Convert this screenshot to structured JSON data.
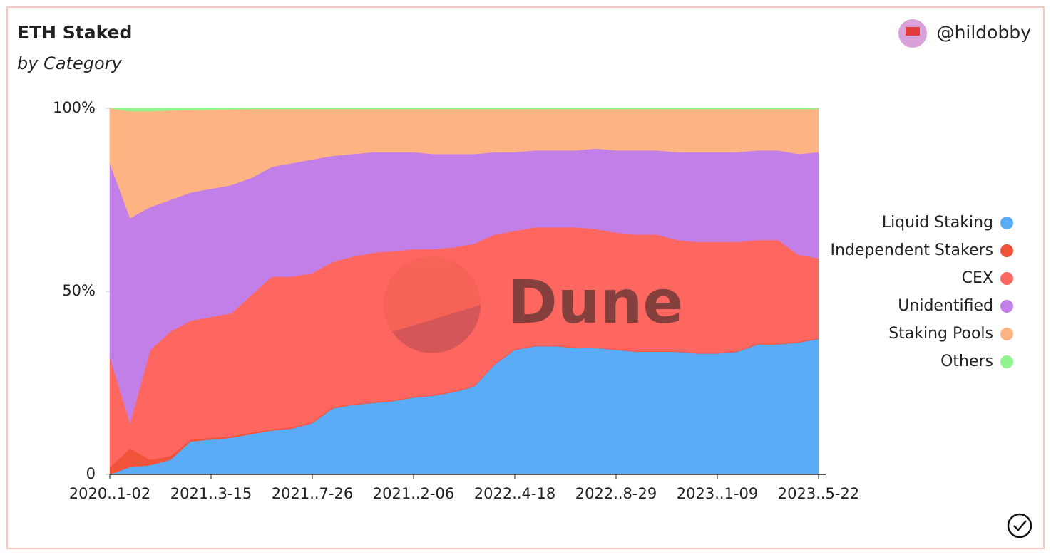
{
  "chart_data": {
    "type": "stacked-area",
    "title": "ETH Staked",
    "subtitle": "by Category",
    "categories": [
      "2020..1-02",
      null,
      null,
      null,
      null,
      "2021..3-15",
      null,
      null,
      null,
      null,
      "2021..7-26",
      null,
      null,
      null,
      null,
      "2021..2-06",
      null,
      null,
      null,
      null,
      "2022..4-18",
      null,
      null,
      null,
      null,
      "2022..8-29",
      null,
      null,
      null,
      null,
      "2023..1-09",
      null,
      null,
      null,
      null,
      "2023..5-22"
    ],
    "ylim": [
      0,
      100
    ],
    "yticks": [
      {
        "value": 0,
        "label": "0"
      },
      {
        "value": 50,
        "label": "50%"
      },
      {
        "value": 100,
        "label": "100%"
      }
    ],
    "legend": "right",
    "series": [
      {
        "name": "Liquid Staking",
        "color": "#59acf5",
        "values": [
          0,
          2,
          2.5,
          4,
          9,
          9.5,
          10,
          11,
          12,
          12.5,
          14,
          18,
          19,
          19.5,
          20,
          21,
          21.5,
          22.5,
          24,
          30,
          34,
          35,
          35,
          34.5,
          34.5,
          34,
          33.5,
          33.5,
          33.5,
          33,
          33,
          33.5,
          35.5,
          35.5,
          36,
          37
        ]
      },
      {
        "name": "Independent Stakers",
        "color": "#f2533b",
        "values": [
          2,
          5,
          1.5,
          1,
          0.5,
          0.5,
          0.4,
          0.4,
          0.3,
          0.3,
          0.3,
          0.3,
          0.2,
          0.2,
          0.2,
          0.2,
          0.2,
          0.2,
          0.2,
          0.2,
          0.2,
          0.2,
          0.2,
          0.2,
          0.2,
          0.2,
          0.2,
          0.2,
          0.2,
          0.2,
          0.2,
          0.2,
          0.2,
          0.2,
          0.2,
          0.2
        ]
      },
      {
        "name": "CEX",
        "color": "#fe6660",
        "values": [
          30,
          7,
          30,
          34,
          32.5,
          33,
          33.6,
          37.6,
          41.7,
          41.2,
          40.7,
          39.7,
          40.3,
          40.8,
          40.8,
          40.3,
          39.8,
          39.3,
          38.8,
          35.3,
          32.3,
          32.3,
          32.3,
          32.8,
          32.3,
          31.8,
          31.8,
          31.8,
          30.3,
          30.3,
          30.3,
          29.8,
          28.3,
          28.3,
          23.8,
          21.8
        ]
      },
      {
        "name": "Unidentified",
        "color": "#c37fe8",
        "values": [
          53,
          56,
          39,
          36,
          35,
          35,
          35,
          32,
          30,
          31,
          31,
          29,
          28,
          27.5,
          27,
          26.5,
          26,
          25.5,
          24.5,
          22.5,
          21.5,
          21,
          21,
          21,
          22,
          22.5,
          23,
          23,
          24,
          24.5,
          24.5,
          24.5,
          24.5,
          24.5,
          27.5,
          29
        ]
      },
      {
        "name": "Staking Pools",
        "color": "#feb482",
        "values": [
          15,
          29.2,
          26.2,
          24.4,
          22.5,
          21.6,
          20.7,
          18.8,
          15.8,
          14.8,
          13.8,
          12.8,
          12.3,
          11.8,
          11.8,
          11.8,
          12.3,
          12.3,
          12.3,
          11.8,
          11.8,
          11.3,
          11.3,
          11.3,
          10.8,
          11.3,
          11.3,
          11.3,
          11.8,
          11.8,
          11.8,
          11.8,
          11.3,
          11.3,
          12.3,
          11.8
        ]
      },
      {
        "name": "Others",
        "color": "#8ff58f",
        "values": [
          0,
          0.8,
          0.8,
          0.6,
          0.5,
          0.4,
          0.3,
          0.2,
          0.2,
          0.2,
          0.2,
          0.2,
          0.2,
          0.2,
          0.2,
          0.2,
          0.2,
          0.2,
          0.2,
          0.2,
          0.2,
          0.2,
          0.2,
          0.2,
          0.2,
          0.2,
          0.2,
          0.2,
          0.2,
          0.2,
          0.2,
          0.2,
          0.2,
          0.2,
          0.2,
          0.2
        ]
      }
    ]
  },
  "author": "@hildobby",
  "watermark": "Dune"
}
